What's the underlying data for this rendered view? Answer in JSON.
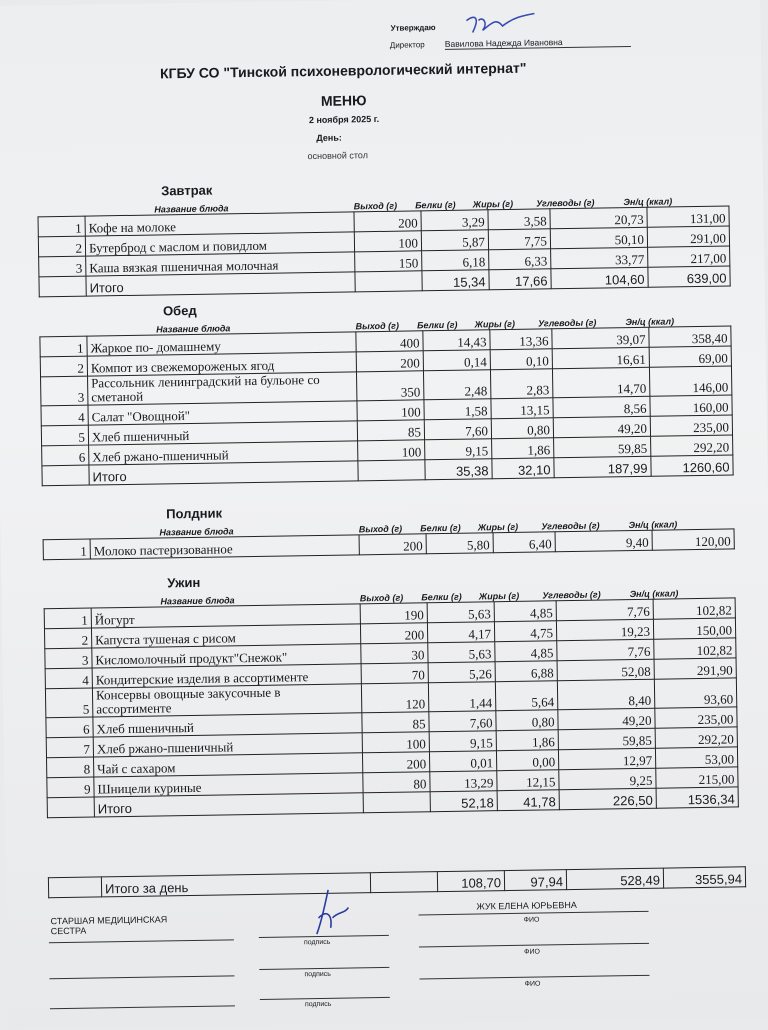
{
  "header": {
    "approve_label": "Утверждаю",
    "director_label": "Директор",
    "director_name": "Вавилова Надежда Ивановна",
    "org": "КГБУ СО \"Тинской психоневрологический интернат\"",
    "title": "МЕНЮ",
    "date": "2 ноября 2025 г.",
    "day_label": "День:",
    "diet": "основной стол"
  },
  "columns": [
    "Название блюда",
    "Выход (г)",
    "Белки (г)",
    "Жиры (г)",
    "Углеводы (г)",
    "Эн/ц (ккал)"
  ],
  "meals": [
    {
      "title": "Завтрак",
      "rows": [
        {
          "n": "1",
          "name": "Кофе на молоке",
          "out": "200",
          "b": "3,29",
          "f": "3,58",
          "c": "20,73",
          "e": "131,00"
        },
        {
          "n": "2",
          "name": "Бутерброд с маслом и повидлом",
          "out": "100",
          "b": "5,87",
          "f": "7,75",
          "c": "50,10",
          "e": "291,00"
        },
        {
          "n": "3",
          "name": "Каша вязкая пшеничная молочная",
          "out": "150",
          "b": "6,18",
          "f": "6,33",
          "c": "33,77",
          "e": "217,00"
        }
      ],
      "total": {
        "label": "Итого",
        "b": "15,34",
        "f": "17,66",
        "c": "104,60",
        "e": "639,00"
      }
    },
    {
      "title": "Обед",
      "rows": [
        {
          "n": "1",
          "name": "Жаркое по- домашнему",
          "out": "400",
          "b": "14,43",
          "f": "13,36",
          "c": "39,07",
          "e": "358,40"
        },
        {
          "n": "2",
          "name": "Компот из свежемороженых ягод",
          "out": "200",
          "b": "0,14",
          "f": "0,10",
          "c": "16,61",
          "e": "69,00"
        },
        {
          "n": "3",
          "name": "Рассольник ленинградский на бульоне со сметаной",
          "out": "350",
          "b": "2,48",
          "f": "2,83",
          "c": "14,70",
          "e": "146,00"
        },
        {
          "n": "4",
          "name": "Салат \"Овощной\"",
          "out": "100",
          "b": "1,58",
          "f": "13,15",
          "c": "8,56",
          "e": "160,00"
        },
        {
          "n": "5",
          "name": "Хлеб пшеничный",
          "out": "85",
          "b": "7,60",
          "f": "0,80",
          "c": "49,20",
          "e": "235,00"
        },
        {
          "n": "6",
          "name": "Хлеб ржано-пшеничный",
          "out": "100",
          "b": "9,15",
          "f": "1,86",
          "c": "59,85",
          "e": "292,20"
        }
      ],
      "total": {
        "label": "Итого",
        "b": "35,38",
        "f": "32,10",
        "c": "187,99",
        "e": "1260,60"
      }
    },
    {
      "title": "Полдник",
      "rows": [
        {
          "n": "1",
          "name": "Молоко пастеризованное",
          "out": "200",
          "b": "5,80",
          "f": "6,40",
          "c": "9,40",
          "e": "120,00"
        }
      ]
    },
    {
      "title": "Ужин",
      "rows": [
        {
          "n": "1",
          "name": "Йогурт",
          "out": "190",
          "b": "5,63",
          "f": "4,85",
          "c": "7,76",
          "e": "102,82"
        },
        {
          "n": "2",
          "name": "Капуста тушеная с рисом",
          "out": "200",
          "b": "4,17",
          "f": "4,75",
          "c": "19,23",
          "e": "150,00"
        },
        {
          "n": "3",
          "name": "Кисломолочный продукт\"Снежок\"",
          "out": "30",
          "b": "5,63",
          "f": "4,85",
          "c": "7,76",
          "e": "102,82"
        },
        {
          "n": "4",
          "name": "Кондитерские изделия в ассортименте",
          "out": "70",
          "b": "5,26",
          "f": "6,88",
          "c": "52,08",
          "e": "291,90"
        },
        {
          "n": "5",
          "name": "Консервы овощные закусочные в ассортименте",
          "out": "120",
          "b": "1,44",
          "f": "5,64",
          "c": "8,40",
          "e": "93,60"
        },
        {
          "n": "6",
          "name": "Хлеб пшеничный",
          "out": "85",
          "b": "7,60",
          "f": "0,80",
          "c": "49,20",
          "e": "235,00"
        },
        {
          "n": "7",
          "name": "Хлеб ржано-пшеничный",
          "out": "100",
          "b": "9,15",
          "f": "1,86",
          "c": "59,85",
          "e": "292,20"
        },
        {
          "n": "8",
          "name": "Чай с сахаром",
          "out": "200",
          "b": "0,01",
          "f": "0,00",
          "c": "12,97",
          "e": "53,00"
        },
        {
          "n": "9",
          "name": "Шницели куриные",
          "out": "80",
          "b": "13,29",
          "f": "12,15",
          "c": "9,25",
          "e": "215,00"
        }
      ],
      "total": {
        "label": "Итого",
        "b": "52,18",
        "f": "41,78",
        "c": "226,50",
        "e": "1536,34"
      }
    }
  ],
  "day_total": {
    "label": "Итого за день",
    "b": "108,70",
    "f": "97,94",
    "c": "528,49",
    "e": "3555,94"
  },
  "signatures": {
    "role": "СТАРШАЯ МЕДИЦИНСКАЯ СЕСТРА",
    "name": "ЖУК ЕЛЕНА ЮРЬЕВНА",
    "sign_label": "подпись",
    "fio_label": "ФИО"
  }
}
